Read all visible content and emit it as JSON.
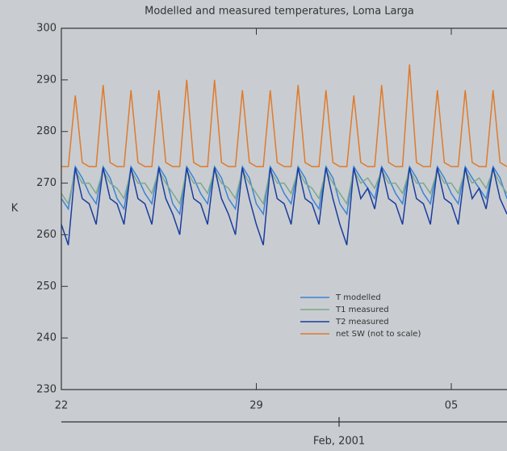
{
  "chart_data": {
    "type": "line",
    "title": "Modelled and measured temperatures, Loma Larga",
    "y_label": "K",
    "x_label": "Feb, 2001",
    "x": [
      0,
      0.25,
      0.5,
      0.75,
      1,
      1.25,
      1.5,
      1.75,
      2,
      2.25,
      2.5,
      2.75,
      3,
      3.25,
      3.5,
      3.75,
      4,
      4.25,
      4.5,
      4.75,
      5,
      5.25,
      5.5,
      5.75,
      6,
      6.25,
      6.5,
      6.75,
      7,
      7.25,
      7.5,
      7.75,
      8,
      8.25,
      8.5,
      8.75,
      9,
      9.25,
      9.5,
      9.75,
      10,
      10.25,
      10.5,
      10.75,
      11,
      11.25,
      11.5,
      11.75,
      12,
      12.25,
      12.5,
      12.75,
      13,
      13.25,
      13.5,
      13.75,
      14,
      14.25,
      14.5,
      14.75,
      15,
      15.25,
      15.5,
      15.75,
      16
    ],
    "xlim": [
      0,
      16
    ],
    "xticks": [
      {
        "value": 0,
        "label": "22"
      },
      {
        "value": 7,
        "label": "29"
      },
      {
        "value": 14,
        "label": "05"
      }
    ],
    "ylim": [
      230,
      300
    ],
    "yticks": [
      230,
      240,
      250,
      260,
      270,
      280,
      290,
      300
    ],
    "legend": "lower right",
    "series": [
      {
        "name": "T modelled",
        "color": "#3d82d4",
        "values": [
          267,
          265,
          273.2,
          271,
          268,
          266,
          273.2,
          271,
          267,
          265,
          273.2,
          271,
          268,
          266,
          273.2,
          271,
          266,
          264,
          273.2,
          271,
          268,
          266,
          273.2,
          271,
          267,
          265,
          273.2,
          271,
          266,
          264,
          273.2,
          271,
          268,
          266,
          273.2,
          271,
          267,
          265,
          273.2,
          271,
          266,
          264,
          273.2,
          271,
          269,
          267,
          273.2,
          271,
          268,
          266,
          273.2,
          271,
          268,
          266,
          273.2,
          271,
          268,
          266,
          273.2,
          271,
          269,
          267,
          273.2,
          271,
          267
        ]
      },
      {
        "name": "T1 measured",
        "color": "#7ea88c",
        "values": [
          268,
          266,
          272.5,
          270,
          270,
          268,
          272.5,
          270,
          269,
          267,
          272.5,
          270,
          270,
          268,
          272.5,
          270,
          268,
          266,
          272.5,
          270,
          270,
          268,
          272.5,
          270,
          269,
          267,
          272.5,
          270,
          268,
          266,
          272.5,
          270,
          270,
          268,
          272.5,
          270,
          269,
          267,
          272.5,
          270,
          268,
          266,
          272.5,
          270,
          271,
          269,
          272.5,
          270,
          270,
          268,
          272.5,
          270,
          270,
          268,
          272.5,
          270,
          270,
          268,
          272.5,
          270,
          271,
          269,
          272.5,
          270,
          268
        ]
      },
      {
        "name": "T2 measured",
        "color": "#1a3c9e",
        "values": [
          262,
          258,
          273,
          267,
          266,
          262,
          273,
          267,
          266,
          262,
          273,
          267,
          266,
          262,
          273,
          267,
          264,
          260,
          273,
          267,
          266,
          262,
          273,
          267,
          264,
          260,
          273,
          267,
          262,
          258,
          273,
          267,
          266,
          262,
          273,
          267,
          266,
          262,
          273,
          267,
          262,
          258,
          273,
          267,
          269,
          265,
          273,
          267,
          266,
          262,
          273,
          267,
          266,
          262,
          273,
          267,
          266,
          262,
          273,
          267,
          269,
          265,
          273,
          267,
          264
        ]
      },
      {
        "name": "net SW (not to scale)",
        "color": "#e07a2c",
        "values": [
          273.2,
          273.2,
          287,
          274,
          273.2,
          273.2,
          289,
          274,
          273.2,
          273.2,
          288,
          274,
          273.2,
          273.2,
          288,
          274,
          273.2,
          273.2,
          290,
          274,
          273.2,
          273.2,
          290,
          274,
          273.2,
          273.2,
          288,
          274,
          273.2,
          273.2,
          288,
          274,
          273.2,
          273.2,
          289,
          274,
          273.2,
          273.2,
          288,
          274,
          273.2,
          273.2,
          287,
          274,
          273.2,
          273.2,
          289,
          274,
          273.2,
          273.2,
          293,
          274,
          273.2,
          273.2,
          288,
          274,
          273.2,
          273.2,
          288,
          274,
          273.2,
          273.2,
          288,
          274,
          273.2
        ]
      }
    ]
  }
}
